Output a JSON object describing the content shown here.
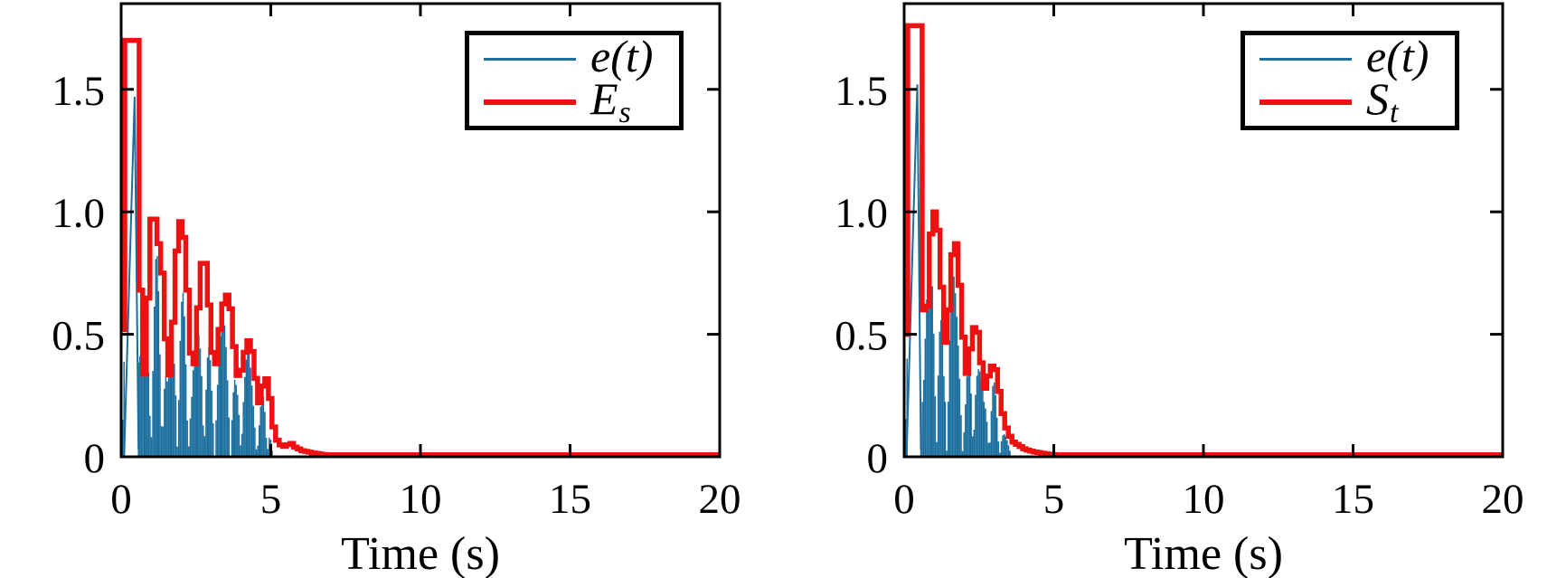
{
  "figure": {
    "background": "#ffffff",
    "axis_color": "#000000"
  },
  "chart_data": [
    {
      "type": "line",
      "position": "left",
      "title": "",
      "xlabel": "Time (s)",
      "ylabel": "",
      "xlim": [
        0,
        20
      ],
      "ylim": [
        0,
        1.85
      ],
      "xticks": [
        0,
        5,
        10,
        15,
        20
      ],
      "xtick_labels": [
        "0",
        "5",
        "10",
        "15",
        "20"
      ],
      "yticks": [
        0,
        0.5,
        1,
        1.5
      ],
      "ytick_labels": [
        "0",
        "0.5",
        "1.0",
        "1.5"
      ],
      "grid": false,
      "legend_position": "upper right",
      "legend": [
        {
          "label_main": "e(t)",
          "label_sub": "",
          "color": "#1B6E9E",
          "line_thickness": 3
        },
        {
          "label_main": "E",
          "label_sub": "s",
          "color": "#EE1111",
          "line_thickness": 6
        }
      ],
      "series": [
        {
          "name": "e(t)",
          "kind": "oscillation",
          "color": "#1B6E9E",
          "linewidth": 1.5,
          "description": "fast oscillating tracking error; decaying bursts, vanishes by t ≈ 5 s",
          "osc_freq_hz": 19.7,
          "pre_envelope": [
            [
              0,
              0.5
            ],
            [
              0.14,
              1.05
            ]
          ],
          "pre_end": 0.14,
          "first_spike": [
            [
              0.1,
              0
            ],
            [
              0.45,
              1.47
            ],
            [
              0.58,
              0.03
            ]
          ],
          "dense_start": 0.58,
          "t_end": 5.05,
          "envelope": [
            [
              0.58,
              0.55
            ],
            [
              0.7,
              0.3
            ],
            [
              0.95,
              0.93
            ],
            [
              1.15,
              0.9
            ],
            [
              1.55,
              0.3
            ],
            [
              1.9,
              0.93
            ],
            [
              2.33,
              0.28
            ],
            [
              2.7,
              0.76
            ],
            [
              3.06,
              0.3
            ],
            [
              3.48,
              0.63
            ],
            [
              3.86,
              0.28
            ],
            [
              4.25,
              0.45
            ],
            [
              4.56,
              0.2
            ],
            [
              4.85,
              0.3
            ],
            [
              5.05,
              0.02
            ]
          ]
        },
        {
          "name": "Es",
          "kind": "envelope",
          "color": "#EE1111",
          "linewidth": 5.5,
          "step_dt": 0.12,
          "points": [
            [
              0.0,
              0.52
            ],
            [
              0.06,
              1.7
            ],
            [
              0.5,
              1.7
            ],
            [
              0.56,
              1.0
            ],
            [
              0.62,
              0.52
            ],
            [
              0.7,
              0.3
            ],
            [
              0.78,
              0.45
            ],
            [
              0.88,
              0.78
            ],
            [
              0.96,
              0.97
            ],
            [
              1.12,
              0.97
            ],
            [
              1.2,
              0.87
            ],
            [
              1.3,
              0.8
            ],
            [
              1.4,
              0.55
            ],
            [
              1.5,
              0.38
            ],
            [
              1.58,
              0.32
            ],
            [
              1.68,
              0.55
            ],
            [
              1.78,
              0.8
            ],
            [
              1.86,
              0.96
            ],
            [
              2.0,
              0.96
            ],
            [
              2.1,
              0.8
            ],
            [
              2.2,
              0.6
            ],
            [
              2.3,
              0.38
            ],
            [
              2.36,
              0.3
            ],
            [
              2.46,
              0.5
            ],
            [
              2.56,
              0.68
            ],
            [
              2.64,
              0.79
            ],
            [
              2.78,
              0.79
            ],
            [
              2.88,
              0.62
            ],
            [
              2.98,
              0.45
            ],
            [
              3.08,
              0.33
            ],
            [
              3.2,
              0.48
            ],
            [
              3.32,
              0.6
            ],
            [
              3.42,
              0.66
            ],
            [
              3.56,
              0.66
            ],
            [
              3.66,
              0.52
            ],
            [
              3.78,
              0.38
            ],
            [
              3.88,
              0.3
            ],
            [
              4.0,
              0.38
            ],
            [
              4.12,
              0.45
            ],
            [
              4.22,
              0.48
            ],
            [
              4.34,
              0.42
            ],
            [
              4.46,
              0.3
            ],
            [
              4.56,
              0.22
            ],
            [
              4.66,
              0.28
            ],
            [
              4.78,
              0.33
            ],
            [
              4.9,
              0.26
            ],
            [
              5.0,
              0.15
            ],
            [
              5.1,
              0.08
            ],
            [
              5.25,
              0.05
            ],
            [
              5.45,
              0.04
            ],
            [
              5.6,
              0.06
            ],
            [
              5.75,
              0.04
            ],
            [
              6.0,
              0.025
            ],
            [
              6.4,
              0.015
            ],
            [
              6.8,
              0.008
            ],
            [
              20,
              0.008
            ]
          ]
        }
      ]
    },
    {
      "type": "line",
      "position": "right",
      "title": "",
      "xlabel": "Time (s)",
      "ylabel": "",
      "xlim": [
        0,
        20
      ],
      "ylim": [
        0,
        1.85
      ],
      "xticks": [
        0,
        5,
        10,
        15,
        20
      ],
      "xtick_labels": [
        "0",
        "5",
        "10",
        "15",
        "20"
      ],
      "yticks": [
        0,
        0.5,
        1,
        1.5
      ],
      "ytick_labels": [
        "0",
        "0.5",
        "1.0",
        "1.5"
      ],
      "grid": false,
      "legend_position": "upper right",
      "legend": [
        {
          "label_main": "e(t)",
          "label_sub": "",
          "color": "#1B6E9E",
          "line_thickness": 3
        },
        {
          "label_main": "S",
          "label_sub": "t",
          "color": "#EE1111",
          "line_thickness": 6
        }
      ],
      "series": [
        {
          "name": "e(t)",
          "kind": "oscillation",
          "color": "#1B6E9E",
          "linewidth": 1.5,
          "description": "fast oscillating tracking error; decaying bursts, vanishes by t ≈ 3.5 s",
          "osc_freq_hz": 19.7,
          "pre_envelope": [
            [
              0,
              0.5
            ],
            [
              0.13,
              1.05
            ]
          ],
          "pre_end": 0.13,
          "first_spike": [
            [
              0.08,
              0
            ],
            [
              0.44,
              1.52
            ],
            [
              0.56,
              0.03
            ]
          ],
          "dense_start": 0.56,
          "t_end": 3.55,
          "envelope": [
            [
              0.56,
              0.55
            ],
            [
              0.66,
              0.42
            ],
            [
              0.88,
              0.97
            ],
            [
              1.05,
              0.95
            ],
            [
              1.32,
              0.4
            ],
            [
              1.58,
              0.84
            ],
            [
              2.02,
              0.3
            ],
            [
              2.32,
              0.52
            ],
            [
              2.66,
              0.25
            ],
            [
              2.95,
              0.34
            ],
            [
              3.25,
              0.15
            ],
            [
              3.55,
              0.02
            ]
          ]
        },
        {
          "name": "St",
          "kind": "envelope",
          "color": "#EE1111",
          "linewidth": 5.5,
          "step_dt": 0.12,
          "points": [
            [
              0.0,
              0.5
            ],
            [
              0.06,
              1.76
            ],
            [
              0.48,
              1.76
            ],
            [
              0.54,
              1.0
            ],
            [
              0.6,
              0.6
            ],
            [
              0.66,
              0.48
            ],
            [
              0.74,
              0.66
            ],
            [
              0.82,
              0.88
            ],
            [
              0.9,
              1.0
            ],
            [
              1.02,
              1.0
            ],
            [
              1.1,
              0.9
            ],
            [
              1.18,
              0.74
            ],
            [
              1.26,
              0.55
            ],
            [
              1.34,
              0.44
            ],
            [
              1.44,
              0.6
            ],
            [
              1.52,
              0.78
            ],
            [
              1.6,
              0.87
            ],
            [
              1.7,
              0.87
            ],
            [
              1.8,
              0.7
            ],
            [
              1.9,
              0.52
            ],
            [
              2.0,
              0.36
            ],
            [
              2.06,
              0.33
            ],
            [
              2.16,
              0.44
            ],
            [
              2.26,
              0.52
            ],
            [
              2.34,
              0.55
            ],
            [
              2.44,
              0.48
            ],
            [
              2.54,
              0.36
            ],
            [
              2.64,
              0.28
            ],
            [
              2.76,
              0.33
            ],
            [
              2.88,
              0.37
            ],
            [
              2.98,
              0.37
            ],
            [
              3.08,
              0.3
            ],
            [
              3.2,
              0.2
            ],
            [
              3.32,
              0.13
            ],
            [
              3.45,
              0.09
            ],
            [
              3.6,
              0.06
            ],
            [
              3.8,
              0.045
            ],
            [
              4.0,
              0.03
            ],
            [
              4.3,
              0.02
            ],
            [
              4.7,
              0.012
            ],
            [
              5.0,
              0.008
            ],
            [
              20,
              0.008
            ]
          ]
        }
      ]
    }
  ]
}
